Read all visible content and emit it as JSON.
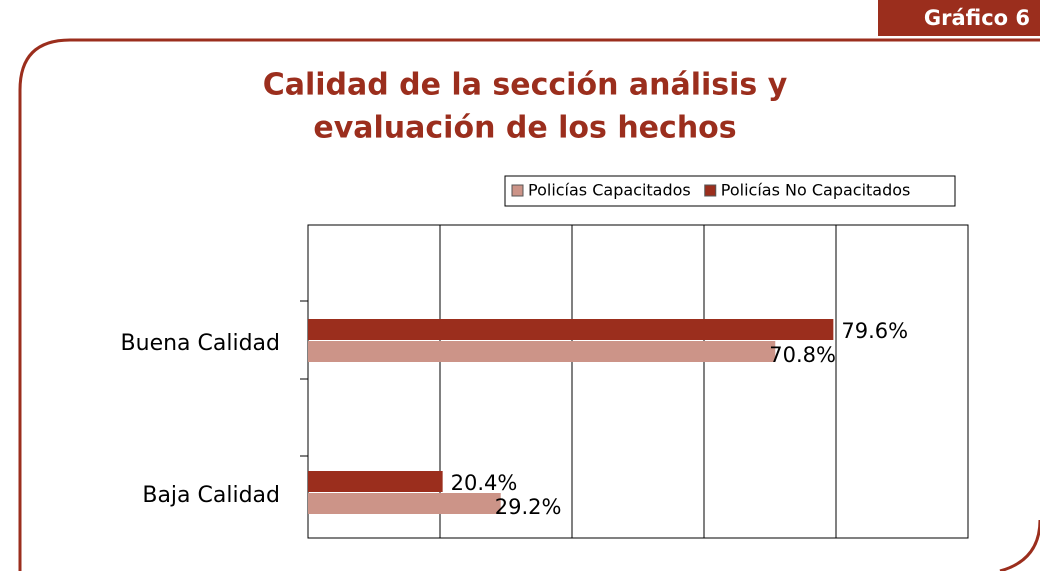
{
  "figure_label": "Gráfico 6",
  "chart_data": {
    "type": "hbar",
    "title": [
      "Calidad de la sección análisis y",
      "evaluación de los hechos"
    ],
    "categories": [
      "Buena Calidad",
      "Baja Calidad"
    ],
    "series": [
      {
        "name": "Policías Capacitados",
        "color": "#cc9488",
        "values": [
          70.8,
          29.2
        ],
        "value_labels": [
          "70.8%",
          "29.2%"
        ]
      },
      {
        "name": "Policías No Capacitados",
        "color": "#9b2e1d",
        "values": [
          79.6,
          20.4
        ],
        "value_labels": [
          "79.6%",
          "20.4%"
        ]
      }
    ],
    "xlim": [
      0,
      100
    ],
    "xticks": [
      0,
      20,
      40,
      60,
      80,
      100
    ],
    "grid": true,
    "legend": "top"
  }
}
